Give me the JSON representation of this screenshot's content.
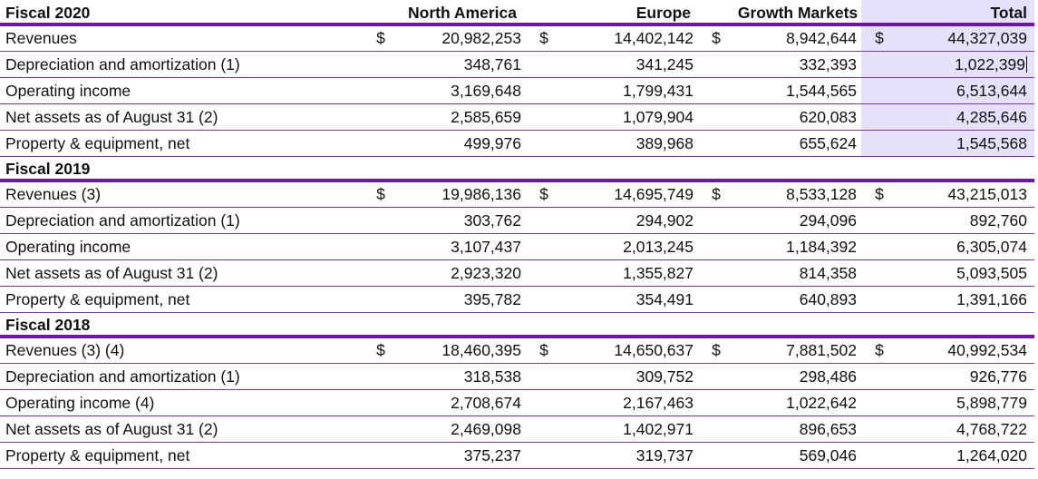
{
  "headers": {
    "north_america": "North America",
    "europe": "Europe",
    "growth_markets": "Growth Markets",
    "total": "Total"
  },
  "currency_symbol": "$",
  "accent_color": "#6a1b9a",
  "highlight_color": "#e6e0fa",
  "groups": [
    {
      "title": "Fiscal 2020",
      "rows": [
        {
          "label": "Revenues",
          "na": "20,982,253",
          "eu": "14,402,142",
          "gm": "8,942,644",
          "total": "44,327,039"
        },
        {
          "label": "Depreciation and amortization (1)",
          "na": "348,761",
          "eu": "341,245",
          "gm": "332,393",
          "total": "1,022,399"
        },
        {
          "label": "Operating income",
          "na": "3,169,648",
          "eu": "1,799,431",
          "gm": "1,544,565",
          "total": "6,513,644"
        },
        {
          "label": "Net assets as of August 31 (2)",
          "na": "2,585,659",
          "eu": "1,079,904",
          "gm": "620,083",
          "total": "4,285,646"
        },
        {
          "label": "Property & equipment, net",
          "na": "499,976",
          "eu": "389,968",
          "gm": "655,624",
          "total": "1,545,568"
        }
      ]
    },
    {
      "title": "Fiscal 2019",
      "rows": [
        {
          "label": "Revenues (3)",
          "na": "19,986,136",
          "eu": "14,695,749",
          "gm": "8,533,128",
          "total": "43,215,013"
        },
        {
          "label": "Depreciation and amortization (1)",
          "na": "303,762",
          "eu": "294,902",
          "gm": "294,096",
          "total": "892,760"
        },
        {
          "label": "Operating income",
          "na": "3,107,437",
          "eu": "2,013,245",
          "gm": "1,184,392",
          "total": "6,305,074"
        },
        {
          "label": "Net assets as of August 31 (2)",
          "na": "2,923,320",
          "eu": "1,355,827",
          "gm": "814,358",
          "total": "5,093,505"
        },
        {
          "label": "Property & equipment, net",
          "na": "395,782",
          "eu": "354,491",
          "gm": "640,893",
          "total": "1,391,166"
        }
      ]
    },
    {
      "title": "Fiscal 2018",
      "rows": [
        {
          "label": "Revenues (3) (4)",
          "na": "18,460,395",
          "eu": "14,650,637",
          "gm": "7,881,502",
          "total": "40,992,534"
        },
        {
          "label": "Depreciation and amortization (1)",
          "na": "318,538",
          "eu": "309,752",
          "gm": "298,486",
          "total": "926,776"
        },
        {
          "label": "Operating income (4)",
          "na": "2,708,674",
          "eu": "2,167,463",
          "gm": "1,022,642",
          "total": "5,898,779"
        },
        {
          "label": "Net assets as of August 31 (2)",
          "na": "2,469,098",
          "eu": "1,402,971",
          "gm": "896,653",
          "total": "4,768,722"
        },
        {
          "label": "Property & equipment, net",
          "na": "375,237",
          "eu": "319,737",
          "gm": "569,046",
          "total": "1,264,020"
        }
      ]
    }
  ]
}
